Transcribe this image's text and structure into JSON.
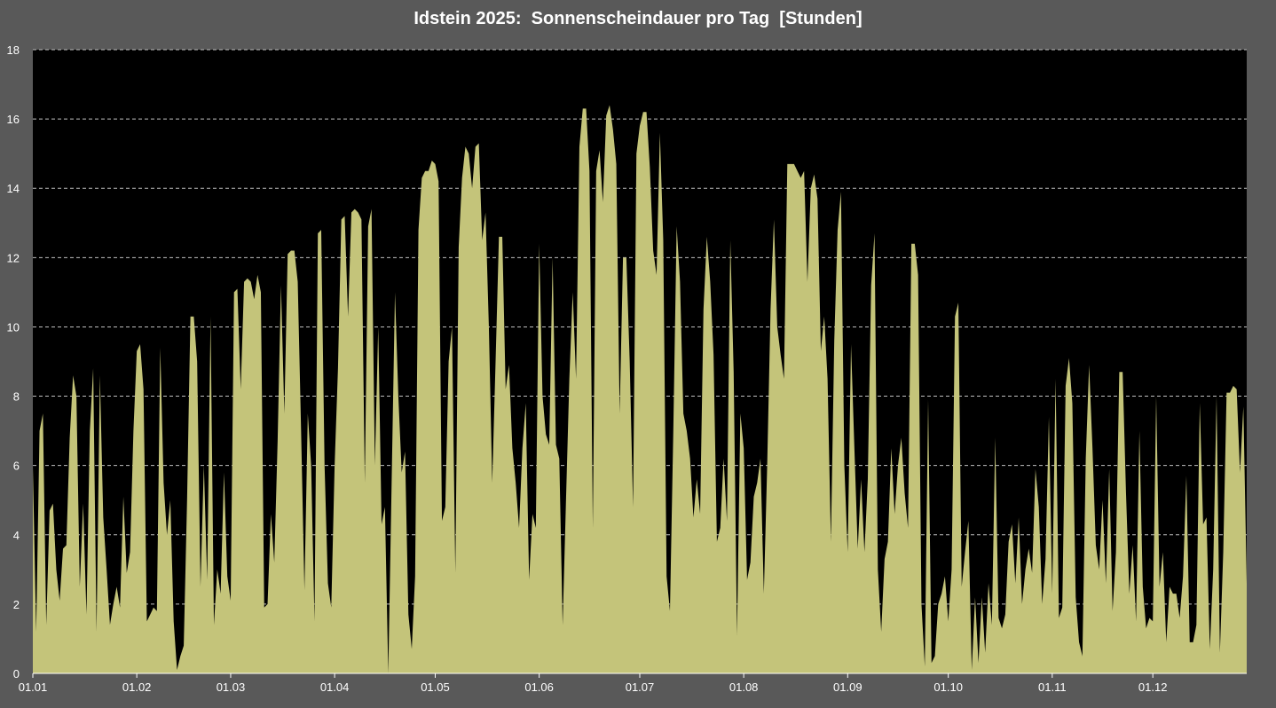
{
  "chart_data": {
    "type": "area",
    "title": "Idstein 2025:  Sonnenscheindauer pro Tag  [Stunden]",
    "xlabel": "",
    "ylabel": "",
    "ylim": [
      0,
      18
    ],
    "y_ticks": [
      0,
      2,
      4,
      6,
      8,
      10,
      12,
      14,
      16,
      18
    ],
    "x_ticks": [
      "01.01",
      "01.02",
      "01.03",
      "01.04",
      "01.05",
      "01.06",
      "01.07",
      "01.08",
      "01.09",
      "01.10",
      "01.11",
      "01.12"
    ],
    "grid": "horizontal dashed",
    "x_start": "2025-01-01",
    "x_end": "2025-12-31",
    "colors": {
      "fill": "#c4c47a",
      "plot_background": "#000000",
      "page_background": "#595959",
      "grid": "#bfbfbf",
      "text": "#ffffff"
    },
    "series": [
      {
        "values": [
          6.0,
          1.2,
          7.0,
          7.5,
          1.4,
          4.7,
          4.9,
          3.0,
          2.1,
          3.6,
          3.7,
          6.8,
          8.6,
          8.0,
          2.5,
          4.9,
          1.7,
          7.0,
          8.8,
          1.2,
          8.6,
          4.5,
          3.0,
          1.4,
          2.0,
          2.5,
          1.9,
          5.1,
          2.9,
          3.5,
          7.0,
          9.3,
          9.5,
          8.2,
          1.5,
          1.7,
          1.9,
          1.8,
          9.4,
          5.5,
          4.0,
          5.0,
          1.5,
          0.1,
          0.5,
          0.8,
          5.0,
          10.3,
          10.3,
          9.0,
          2.5,
          6.0,
          2.7,
          10.3,
          1.4,
          3.0,
          2.3,
          5.8,
          2.8,
          2.1,
          11.0,
          11.1,
          8.2,
          11.3,
          11.4,
          11.3,
          10.8,
          11.5,
          11.0,
          1.9,
          2.0,
          4.6,
          3.2,
          6.7,
          11.2,
          7.5,
          12.1,
          12.2,
          12.2,
          11.3,
          7.0,
          2.4,
          7.5,
          6.0,
          1.5,
          12.7,
          12.8,
          6.0,
          2.6,
          1.9,
          6.0,
          8.8,
          13.1,
          13.2,
          10.3,
          13.3,
          13.4,
          13.3,
          13.1,
          5.5,
          12.9,
          13.4,
          6.0,
          10.0,
          4.3,
          4.8,
          0.0,
          5.5,
          11.0,
          8.0,
          5.8,
          6.4,
          1.7,
          0.7,
          2.8,
          12.8,
          14.3,
          14.5,
          14.5,
          14.8,
          14.7,
          14.2,
          4.4,
          4.8,
          9.0,
          10.0,
          2.9,
          12.3,
          14.3,
          15.2,
          15.0,
          14.0,
          15.2,
          15.3,
          12.5,
          13.3,
          10.0,
          5.5,
          9.0,
          12.6,
          12.6,
          8.2,
          8.9,
          6.5,
          5.5,
          4.2,
          6.5,
          7.8,
          2.7,
          4.6,
          4.2,
          12.4,
          8.0,
          6.9,
          6.6,
          12.0,
          6.6,
          6.2,
          1.4,
          5.0,
          8.5,
          11.0,
          8.5,
          15.2,
          16.3,
          16.3,
          14.5,
          4.2,
          14.5,
          15.1,
          13.6,
          16.1,
          16.4,
          15.7,
          14.7,
          7.5,
          12.0,
          12.0,
          9.0,
          4.8,
          15.0,
          15.8,
          16.2,
          16.2,
          14.6,
          12.2,
          11.5,
          15.6,
          12.5,
          2.8,
          1.8,
          7.0,
          12.9,
          11.3,
          7.5,
          7.0,
          6.2,
          4.5,
          5.6,
          4.6,
          10.5,
          12.6,
          11.3,
          9.2,
          3.8,
          4.2,
          6.2,
          4.4,
          12.5,
          8.7,
          1.1,
          7.5,
          6.5,
          2.7,
          3.2,
          5.1,
          5.5,
          6.2,
          2.3,
          6.0,
          10.5,
          13.1,
          10.0,
          9.2,
          8.5,
          14.7,
          14.7,
          14.7,
          14.5,
          14.3,
          14.5,
          11.3,
          14.0,
          14.4,
          13.7,
          9.3,
          10.3,
          8.5,
          3.8,
          9.6,
          12.8,
          13.9,
          6.0,
          3.5,
          9.5,
          6.5,
          3.6,
          5.6,
          3.5,
          5.6,
          11.2,
          12.7,
          3.0,
          1.2,
          3.3,
          3.8,
          6.5,
          4.6,
          6.0,
          6.8,
          5.2,
          4.2,
          12.4,
          12.4,
          11.5,
          2.0,
          0.2,
          7.9,
          0.3,
          0.5,
          2.0,
          2.3,
          2.8,
          1.5,
          3.0,
          10.3,
          10.7,
          2.5,
          3.5,
          4.4,
          0.1,
          2.2,
          0.3,
          2.2,
          0.6,
          2.6,
          1.4,
          6.8,
          1.6,
          1.3,
          1.7,
          3.8,
          4.3,
          2.6,
          4.5,
          2.0,
          3.0,
          3.6,
          2.9,
          5.9,
          4.8,
          2.0,
          3.3,
          7.4,
          2.3,
          8.5,
          1.6,
          1.9,
          8.3,
          9.1,
          7.8,
          2.2,
          0.9,
          0.5,
          6.2,
          8.9,
          6.5,
          3.7,
          3.0,
          5.0,
          2.6,
          5.9,
          1.8,
          3.5,
          8.7,
          8.7,
          5.2,
          2.3,
          3.7,
          1.5,
          7.0,
          2.5,
          1.3,
          1.6,
          1.5,
          8.0,
          2.5,
          3.5,
          0.9,
          2.5,
          2.3,
          2.3,
          1.6,
          2.8,
          5.7,
          0.9,
          0.9,
          1.4,
          7.8,
          4.3,
          4.5,
          0.7,
          3.0,
          8.0,
          0.6,
          3.5,
          8.1,
          8.1,
          8.3,
          8.2,
          5.8,
          7.7,
          2.6
        ]
      }
    ]
  }
}
